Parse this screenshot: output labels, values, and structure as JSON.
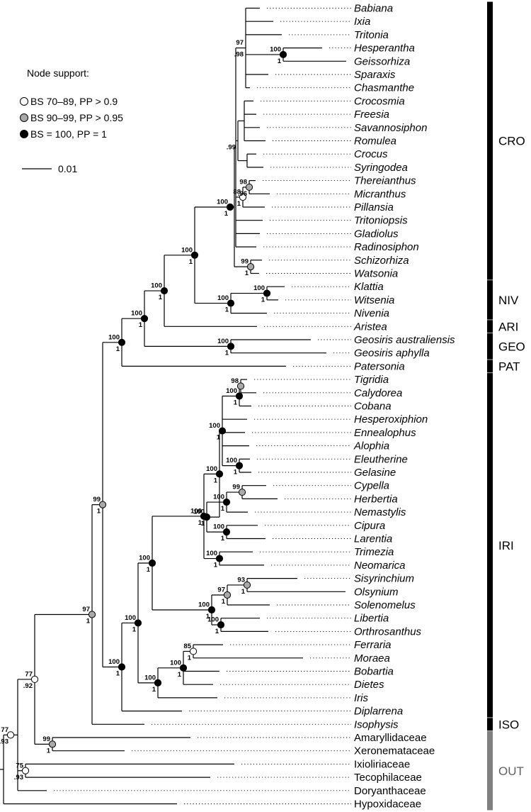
{
  "legend": {
    "title": "Node support:",
    "items": [
      {
        "label": "BS 70–89, PP > 0.9",
        "fill": "#ffffff"
      },
      {
        "label": "BS 90–99, PP > 0.95",
        "fill": "#a9a9a9"
      },
      {
        "label": "BS = 100, PP = 1",
        "fill": "#000000"
      }
    ],
    "scale_label": "0.01"
  },
  "colors": {
    "branch": "#000000",
    "clade_bar": "#000000",
    "outgroup_bar": "#808080",
    "outgroup_label": "#606060"
  },
  "taxa": [
    "Babiana",
    "Ixia",
    "Tritonia",
    "Hesperantha",
    "Geissorhiza",
    "Sparaxis",
    "Chasmanthe",
    "Crocosmia",
    "Freesia",
    "Savannosiphon",
    "Romulea",
    "Crocus",
    "Syringodea",
    "Thereianthus",
    "Micranthus",
    "Pillansia",
    "Tritoniopsis",
    "Gladiolus",
    "Radinosiphon",
    "Schizorhiza",
    "Watsonia",
    "Klattia",
    "Witsenia",
    "Nivenia",
    "Aristea",
    "Geosiris australiensis",
    "Geosiris aphylla",
    "Patersonia",
    "Tigridia",
    "Calydorea",
    "Cobana",
    "Hesperoxiphion",
    "Ennealophus",
    "Alophia",
    "Eleutherine",
    "Gelasine",
    "Cypella",
    "Herbertia",
    "Nemastylis",
    "Cipura",
    "Larentia",
    "Trimezia",
    "Neomarica",
    "Sisyrinchium",
    "Olsynium",
    "Solenomelus",
    "Libertia",
    "Orthrosanthus",
    "Ferraria",
    "Moraea",
    "Bobartia",
    "Dietes",
    "Iris",
    "Diplarrena",
    "Isophysis",
    "Amaryllidaceae",
    "Xeronemataceae",
    "Ixioliriaceae",
    "Tecophilaceae",
    "Doryanthaceae",
    "Hypoxidaceae"
  ],
  "clades": [
    {
      "label": "CRO",
      "from": "Babiana",
      "to": "Watsonia"
    },
    {
      "label": "NIV",
      "from": "Klattia",
      "to": "Nivenia"
    },
    {
      "label": "ARI",
      "from": "Aristea",
      "to": "Aristea"
    },
    {
      "label": "GEO",
      "from": "Geosiris australiensis",
      "to": "Geosiris aphylla"
    },
    {
      "label": "PAT",
      "from": "Patersonia",
      "to": "Patersonia"
    },
    {
      "label": "IRI",
      "from": "Tigridia",
      "to": "Diplarrena"
    },
    {
      "label": "ISO",
      "from": "Isophysis",
      "to": "Isophysis"
    },
    {
      "label": "OUT",
      "from": "Amaryllidaceae",
      "to": "Hypoxidaceae"
    }
  ],
  "support_values": [
    {
      "bs": "100",
      "pp": "1",
      "support": "full"
    },
    {
      "bs": "97",
      "pp": ".98"
    },
    {
      "bs": "",
      "pp": ".99"
    },
    {
      "bs": "98",
      "pp": ".96",
      "support": "mid"
    },
    {
      "bs": "88",
      "pp": "1",
      "support": "low"
    },
    {
      "bs": "100",
      "pp": "1",
      "support": "full"
    },
    {
      "bs": "99",
      "pp": "1",
      "support": "mid"
    },
    {
      "bs": "100",
      "pp": "1",
      "support": "full"
    },
    {
      "bs": "100",
      "pp": "1",
      "support": "full"
    },
    {
      "bs": "100",
      "pp": "1",
      "support": "full"
    },
    {
      "bs": "100",
      "pp": "1",
      "support": "full"
    },
    {
      "bs": "100",
      "pp": "1",
      "support": "full"
    },
    {
      "bs": "100",
      "pp": "1",
      "support": "full"
    },
    {
      "bs": "100",
      "pp": "1",
      "support": "full"
    },
    {
      "bs": "100",
      "pp": "1",
      "support": "full"
    },
    {
      "bs": "98",
      "pp": "",
      "support": "mid"
    },
    {
      "bs": "100",
      "pp": "1",
      "support": "full"
    },
    {
      "bs": "100",
      "pp": "1",
      "support": "full"
    },
    {
      "bs": "100",
      "pp": "1",
      "support": "full"
    },
    {
      "bs": "99",
      "pp": "",
      "support": "mid"
    },
    {
      "bs": "100",
      "pp": "1",
      "support": "full"
    },
    {
      "bs": "100",
      "pp": "1",
      "support": "full"
    },
    {
      "bs": "100",
      "pp": "1",
      "support": "full"
    },
    {
      "bs": "100",
      "pp": "1",
      "support": "full"
    },
    {
      "bs": "100",
      "pp": "1",
      "support": "full"
    },
    {
      "bs": "100",
      "pp": "1",
      "support": "full"
    },
    {
      "bs": "93",
      "pp": "1",
      "support": "mid"
    },
    {
      "bs": "97",
      "pp": "1",
      "support": "mid"
    },
    {
      "bs": "100",
      "pp": "1",
      "support": "full"
    },
    {
      "bs": "100",
      "pp": "1",
      "support": "full"
    },
    {
      "bs": "100",
      "pp": "1",
      "support": "full"
    },
    {
      "bs": "85",
      "pp": "1",
      "support": "low"
    },
    {
      "bs": "100",
      "pp": "1",
      "support": "full"
    },
    {
      "bs": "100",
      "pp": "1",
      "support": "full"
    },
    {
      "bs": "100",
      "pp": "1",
      "support": "full"
    },
    {
      "bs": "100",
      "pp": "1",
      "support": "full"
    },
    {
      "bs": "99",
      "pp": "1",
      "support": "mid"
    },
    {
      "bs": "97",
      "pp": "1",
      "support": "mid"
    },
    {
      "bs": "99",
      "pp": "1",
      "support": "mid"
    },
    {
      "bs": "77",
      "pp": ".92",
      "support": "low"
    },
    {
      "bs": "75",
      "pp": ".93",
      "support": "low"
    },
    {
      "bs": "77",
      "pp": ".93",
      "support": "low"
    }
  ]
}
